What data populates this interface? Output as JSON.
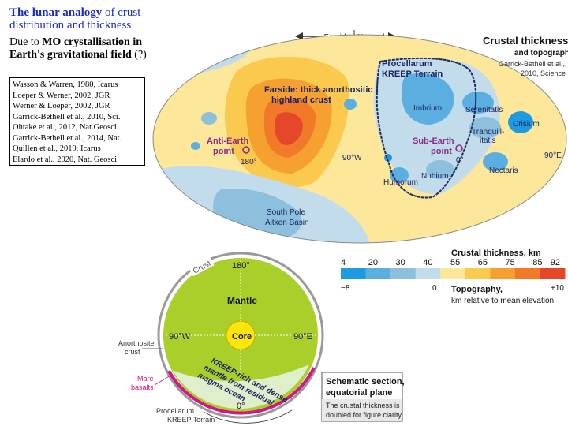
{
  "title": {
    "line1_prefix": "The lunar analogy",
    "line1_suffix": " of crust",
    "line2": "distribution and thickness",
    "line3_prefix": "Due to ",
    "line3_bold": "MO crystallisation in",
    "line4_bold": "Earth's gravitational field",
    "line4_suffix": " (?)"
  },
  "references": [
    "Wasson & Warren, 1980, Icarus",
    "Loeper & Werner, 2002, JGR",
    "Werner & Loeper, 2002, JGR",
    "Garrick-Bethell et al., 2010, Sci.",
    "Ohtake et al., 2012, Nat.Geosci.",
    "Garrick-Bethell et al., 2014, Nat.",
    "Quillen et al., 2019, Icarus",
    "Elardo et al., 2020, Nat. Geosci"
  ],
  "map": {
    "farside": "Farside",
    "nearside": "Nearside",
    "heading": "Crustal thickness",
    "heading2": "and topography",
    "source1": "Garrick-Bethell et al.,",
    "source2": "2010, Science",
    "kreep1": "Procellarum",
    "kreep2": "KREEP Terrain",
    "farside_note1": "Farside: thick anorthositic",
    "farside_note2": "highland crust",
    "anti_earth1": "Anti-Earth",
    "anti_earth2": "point",
    "sub_earth1": "Sub-Earth",
    "sub_earth2": "point",
    "lon_180": "180°",
    "lon_90w": "90°W",
    "lon_0": "0°",
    "lon_90e": "90°E",
    "imbrium": "Imbrium",
    "serenitatis": "Serenitatis",
    "crisium": "Crisium",
    "tranquillitatis1": "Tranquill-",
    "tranquillitatis2": "itatis",
    "nectaris": "Nectaris",
    "nubium": "Nubium",
    "humorum": "Humorum",
    "spa1": "South Pole",
    "spa2": "Aitken Basin"
  },
  "legend": {
    "thickness_label": "Crustal thickness, km",
    "thickness_ticks": [
      "4",
      "20",
      "30",
      "40",
      "55",
      "65",
      "75",
      "85",
      "92"
    ],
    "topo_ticks": [
      "−8",
      "0",
      "+10"
    ],
    "topo_label1": "Topography,",
    "topo_label2": "km relative to mean elevation",
    "colors": [
      "#1e9be0",
      "#5aafe0",
      "#8cc0dc",
      "#c2dcec",
      "#fde79a",
      "#fbc94e",
      "#f7a032",
      "#f07a2a",
      "#e4472a"
    ]
  },
  "section": {
    "crust": "Crust",
    "deg_180": "180°",
    "mantle": "Mantle",
    "core": "Core",
    "deg_90w": "90°W",
    "deg_90e": "90°E",
    "deg_0": "0°",
    "kreep_note1": "KREEP-rich and dense",
    "kreep_note2": "mantle from residual",
    "kreep_note3": "magma ocean",
    "anorthosite1": "Anorthosite",
    "anorthosite2": "crust",
    "mare1": "Mare",
    "mare2": "basalts",
    "procellarum1": "Procellarum",
    "procellarum2": "KREEP Terrain",
    "box_title1": "Schematic section,",
    "box_title2": "equatorial plane",
    "box_note1": "The crustal thickness is",
    "box_note2": "doubled for figure clarity"
  }
}
